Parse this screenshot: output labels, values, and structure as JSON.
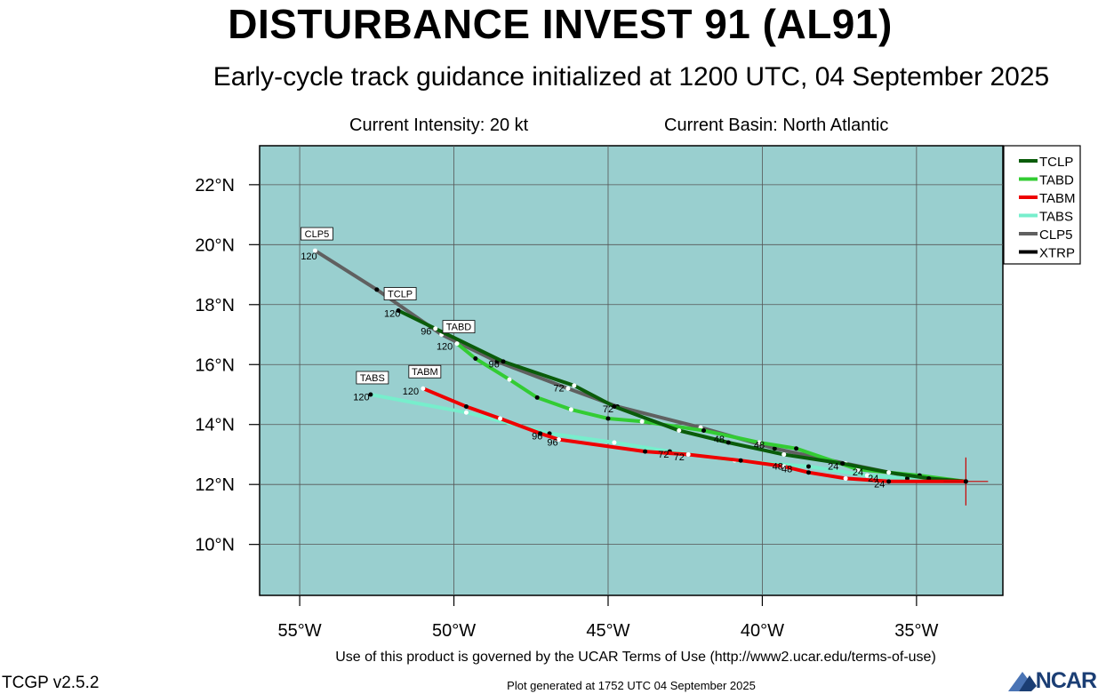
{
  "title": "DISTURBANCE INVEST 91 (AL91)",
  "subtitle": "Early-cycle track guidance initialized at 1200 UTC, 04 September 2025",
  "current_intensity": "Current Intensity: 20 kt",
  "current_basin": "Current Basin: North Atlantic",
  "footer_terms": "Use of this product is governed by the UCAR Terms of Use (http://www2.ucar.edu/terms-of-use)",
  "footer_generated": "Plot generated at 1752 UTC   04 September 2025",
  "version": "TCGP v2.5.2",
  "logo_text": "NCAR",
  "colors": {
    "map_bg": "#99cfcf",
    "grid": "#555555",
    "TCLP": "#0a5c0a",
    "TABD": "#33cc33",
    "TABM": "#ee0000",
    "TABS": "#77eecc",
    "CLP5": "#606060",
    "XTRP": "#000000"
  },
  "chart_data": {
    "type": "map-track",
    "xlim": [
      -56.3,
      -32.2
    ],
    "ylim": [
      8.3,
      23.3
    ],
    "x_ticks": [
      -55,
      -50,
      -45,
      -40,
      -35
    ],
    "x_tick_labels": [
      "55°W",
      "50°W",
      "45°W",
      "40°W",
      "35°W"
    ],
    "y_ticks": [
      10,
      12,
      14,
      16,
      18,
      20,
      22
    ],
    "y_tick_labels": [
      "10°N",
      "12°N",
      "14°N",
      "16°N",
      "18°N",
      "20°N",
      "22°N"
    ],
    "legend_position": "top-right",
    "storm_position": [
      -33.4,
      12.1
    ],
    "series": [
      {
        "name": "TCLP",
        "points": [
          [
            -33.4,
            12.1
          ],
          [
            -34.6,
            12.2
          ],
          [
            -35.9,
            12.4
          ],
          [
            -37.4,
            12.7
          ],
          [
            -39.3,
            13.0
          ],
          [
            -41.1,
            13.4
          ],
          [
            -42.7,
            13.8
          ],
          [
            -44.8,
            14.6
          ],
          [
            -46.1,
            15.3
          ],
          [
            -48.4,
            16.1
          ],
          [
            -50.6,
            17.2
          ],
          [
            -51.8,
            17.8
          ]
        ],
        "end_label": "TCLP",
        "hour_labels": [
          {
            "text": "24",
            "x": -37.7,
            "y": 12.5
          },
          {
            "text": "48",
            "x": -40.1,
            "y": 13.2
          },
          {
            "text": "72",
            "x": -46.6,
            "y": 15.1
          },
          {
            "text": "96",
            "x": -50.9,
            "y": 17.0
          },
          {
            "text": "120",
            "x": -52.0,
            "y": 17.6
          }
        ]
      },
      {
        "name": "TABD",
        "points": [
          [
            -33.4,
            12.1
          ],
          [
            -34.9,
            12.3
          ],
          [
            -36.9,
            12.5
          ],
          [
            -38.9,
            13.2
          ],
          [
            -40.1,
            13.4
          ],
          [
            -41.9,
            13.8
          ],
          [
            -43.9,
            14.1
          ],
          [
            -45.0,
            14.2
          ],
          [
            -46.2,
            14.5
          ],
          [
            -47.3,
            14.9
          ],
          [
            -48.2,
            15.5
          ],
          [
            -49.3,
            16.2
          ],
          [
            -49.9,
            16.7
          ]
        ],
        "end_label": "TABD",
        "hour_labels": [
          {
            "text": "24",
            "x": -36.9,
            "y": 12.3
          },
          {
            "text": "48",
            "x": -41.4,
            "y": 13.4
          },
          {
            "text": "72",
            "x": -45.0,
            "y": 14.4
          },
          {
            "text": "96",
            "x": -48.7,
            "y": 15.9
          },
          {
            "text": "120",
            "x": -50.3,
            "y": 16.5
          }
        ]
      },
      {
        "name": "TABM",
        "points": [
          [
            -33.4,
            12.1
          ],
          [
            -35.9,
            12.1
          ],
          [
            -37.3,
            12.2
          ],
          [
            -38.5,
            12.4
          ],
          [
            -39.3,
            12.6
          ],
          [
            -40.7,
            12.8
          ],
          [
            -42.4,
            13.0
          ],
          [
            -43.8,
            13.1
          ],
          [
            -46.6,
            13.5
          ],
          [
            -47.2,
            13.7
          ],
          [
            -48.5,
            14.2
          ],
          [
            -49.6,
            14.6
          ],
          [
            -51.0,
            15.2
          ]
        ],
        "end_label": "TABM",
        "hour_labels": [
          {
            "text": "24",
            "x": -36.2,
            "y": 11.9
          },
          {
            "text": "48",
            "x": -39.2,
            "y": 12.4
          },
          {
            "text": "72",
            "x": -42.7,
            "y": 12.8
          },
          {
            "text": "96",
            "x": -46.8,
            "y": 13.3
          },
          {
            "text": "120",
            "x": -51.4,
            "y": 15.0
          }
        ]
      },
      {
        "name": "TABS",
        "points": [
          [
            -33.4,
            12.1
          ],
          [
            -35.3,
            12.2
          ],
          [
            -36.6,
            12.3
          ],
          [
            -38.5,
            12.6
          ],
          [
            -40.9,
            12.8
          ],
          [
            -43.0,
            13.1
          ],
          [
            -44.8,
            13.4
          ],
          [
            -46.9,
            13.7
          ],
          [
            -49.6,
            14.4
          ],
          [
            -52.7,
            15.0
          ]
        ],
        "end_label": "TABS",
        "hour_labels": [
          {
            "text": "24",
            "x": -36.4,
            "y": 12.1
          },
          {
            "text": "48",
            "x": -39.5,
            "y": 12.5
          },
          {
            "text": "72",
            "x": -43.2,
            "y": 12.9
          },
          {
            "text": "96",
            "x": -47.3,
            "y": 13.5
          },
          {
            "text": "120",
            "x": -53.0,
            "y": 14.8
          }
        ]
      },
      {
        "name": "CLP5",
        "points": [
          [
            -33.4,
            12.1
          ],
          [
            -35.4,
            12.3
          ],
          [
            -37.3,
            12.7
          ],
          [
            -39.6,
            13.2
          ],
          [
            -42.0,
            13.9
          ],
          [
            -44.7,
            14.6
          ],
          [
            -46.3,
            15.2
          ],
          [
            -48.6,
            16.1
          ],
          [
            -50.4,
            17.0
          ],
          [
            -52.5,
            18.5
          ],
          [
            -54.5,
            19.8
          ]
        ],
        "end_label": "CLP5",
        "hour_labels": [
          {
            "text": "120",
            "x": -54.7,
            "y": 19.5
          }
        ]
      },
      {
        "name": "XTRP",
        "points": [
          [
            -33.4,
            12.1
          ],
          [
            -33.4,
            12.1
          ]
        ],
        "hour_labels": []
      }
    ]
  }
}
